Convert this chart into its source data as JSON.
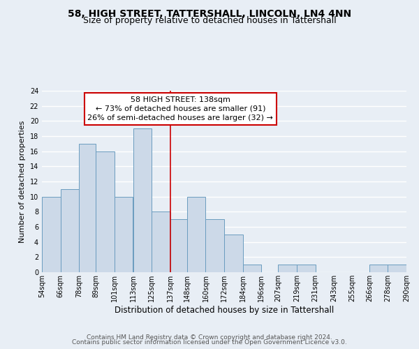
{
  "title": "58, HIGH STREET, TATTERSHALL, LINCOLN, LN4 4NN",
  "subtitle": "Size of property relative to detached houses in Tattershall",
  "xlabel": "Distribution of detached houses by size in Tattershall",
  "ylabel": "Number of detached properties",
  "bin_edges": [
    54,
    66,
    78,
    89,
    101,
    113,
    125,
    137,
    148,
    160,
    172,
    184,
    196,
    207,
    219,
    231,
    243,
    255,
    266,
    278,
    290
  ],
  "bin_labels": [
    "54sqm",
    "66sqm",
    "78sqm",
    "89sqm",
    "101sqm",
    "113sqm",
    "125sqm",
    "137sqm",
    "148sqm",
    "160sqm",
    "172sqm",
    "184sqm",
    "196sqm",
    "207sqm",
    "219sqm",
    "231sqm",
    "243sqm",
    "255sqm",
    "266sqm",
    "278sqm",
    "290sqm"
  ],
  "counts": [
    10,
    11,
    17,
    16,
    10,
    19,
    8,
    7,
    10,
    7,
    5,
    1,
    0,
    1,
    1,
    0,
    0,
    0,
    1,
    1
  ],
  "bar_color": "#ccd9e8",
  "bar_edge_color": "#6a9cbf",
  "property_line_x": 137,
  "property_line_color": "#cc0000",
  "ylim": [
    0,
    24
  ],
  "yticks": [
    0,
    2,
    4,
    6,
    8,
    10,
    12,
    14,
    16,
    18,
    20,
    22,
    24
  ],
  "annotation_box_title": "58 HIGH STREET: 138sqm",
  "annotation_line1": "← 73% of detached houses are smaller (91)",
  "annotation_line2": "26% of semi-detached houses are larger (32) →",
  "annotation_box_color": "#ffffff",
  "annotation_box_edge_color": "#cc0000",
  "footer_line1": "Contains HM Land Registry data © Crown copyright and database right 2024.",
  "footer_line2": "Contains public sector information licensed under the Open Government Licence v3.0.",
  "background_color": "#e8eef5",
  "plot_bg_color": "#e8eef5",
  "grid_color": "#ffffff",
  "title_fontsize": 10,
  "subtitle_fontsize": 9,
  "xlabel_fontsize": 8.5,
  "ylabel_fontsize": 8,
  "tick_fontsize": 7,
  "annotation_fontsize": 8,
  "footer_fontsize": 6.5
}
